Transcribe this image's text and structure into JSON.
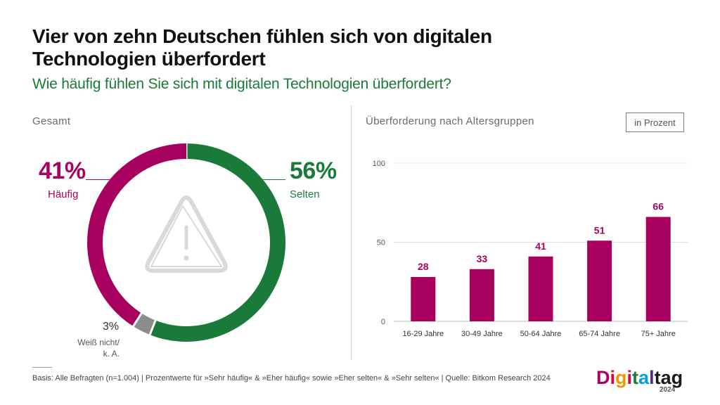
{
  "title": "Vier von zehn Deutschen fühlen sich von digitalen Technologien überfordert",
  "subtitle": "Wie häufig fühlen Sie sich mit digitalen Technologien überfordert?",
  "left_section_label": "Gesamt",
  "right_section_label": "Überforderung nach Altersgruppen",
  "unit_label": "in Prozent",
  "colors": {
    "magenta": "#a8005f",
    "green": "#1a7a3a",
    "gray": "#8c8c8c",
    "icon": "#d9d9d9"
  },
  "donut": {
    "haeufig_pct": "41%",
    "haeufig_label": "Häufig",
    "selten_pct": "56%",
    "selten_label": "Selten",
    "weissnicht_pct": "3%",
    "weissnicht_label_line1": "Weiß nicht/",
    "weissnicht_label_line2": "k. A.",
    "center_icon": "warning-triangle-icon"
  },
  "chart_data": [
    {
      "type": "pie",
      "title": "Gesamt",
      "categories": [
        "Selten",
        "Weiß nicht/ k. A.",
        "Häufig"
      ],
      "values": [
        56,
        3,
        41
      ]
    },
    {
      "type": "bar",
      "title": "Überforderung nach Altersgruppen",
      "categories": [
        "16-29 Jahre",
        "30-49 Jahre",
        "50-64 Jahre",
        "65-74 Jahre",
        "75+ Jahre"
      ],
      "values": [
        28,
        33,
        41,
        51,
        66
      ],
      "ylim": [
        0,
        100
      ],
      "yticks": [
        0,
        50,
        100
      ],
      "grid": true
    }
  ],
  "footer": "Basis: Alle Befragten (n=1.004) | Prozentwerte für »Sehr häufig« & »Eher häufig« sowie »Eher selten« & »Sehr selten« | Quelle: Bitkom Research 2024",
  "logo": {
    "letters": [
      "D",
      "i",
      "g",
      "i",
      "t",
      "a",
      "l",
      "t",
      "a",
      "g"
    ],
    "letter_colors": [
      "#a8005f",
      "#e4003a",
      "#f29400",
      "#e4003a",
      "#1a7a3a",
      "#009fe3",
      "#5b2a86",
      "#1a1a1a",
      "#1a1a1a",
      "#1a1a1a"
    ],
    "year": "2024"
  }
}
